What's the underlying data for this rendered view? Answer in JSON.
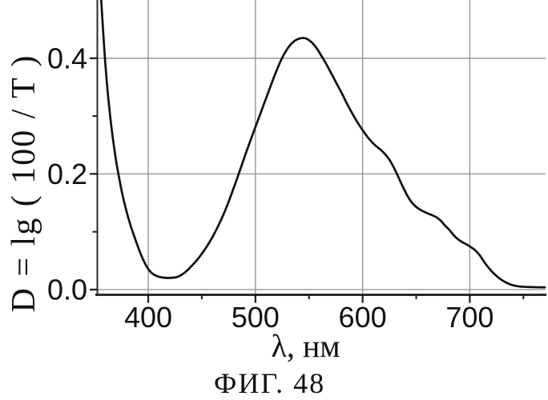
{
  "figure": {
    "caption": "ФИГ. 48",
    "background": "#ffffff"
  },
  "colors": {
    "curve": "#101010",
    "grid": "#8f8f8f",
    "axis": "#1a1a1a",
    "text": "#111111"
  },
  "chart_data": {
    "type": "line",
    "title": "",
    "xlabel": "λ, нм",
    "ylabel": "D = lg ( 100 / T )",
    "grid": true,
    "legend_visible": false,
    "x_axis": {
      "min": 352,
      "max": 770,
      "ticks": [
        400,
        500,
        600,
        700
      ],
      "tick_labels": [
        "400",
        "500",
        "600",
        "700"
      ],
      "minor_ticks": [
        450,
        550,
        650,
        750
      ]
    },
    "y_axis": {
      "min": 0.0,
      "max": 0.5,
      "ticks": [
        0.0,
        0.2,
        0.4
      ],
      "tick_labels": [
        "0.0",
        "0.2",
        "0.4"
      ],
      "minor_ticks": [
        0.1,
        0.3
      ]
    },
    "series": [
      {
        "name": "absorption spectrum D(lambda)",
        "points": [
          [
            355.3,
            0.525
          ],
          [
            356.5,
            0.49
          ],
          [
            358,
            0.445
          ],
          [
            360,
            0.39
          ],
          [
            362,
            0.345
          ],
          [
            364.5,
            0.3
          ],
          [
            367,
            0.262
          ],
          [
            370,
            0.223
          ],
          [
            373,
            0.192
          ],
          [
            376,
            0.164
          ],
          [
            379.5,
            0.137
          ],
          [
            383,
            0.114
          ],
          [
            387,
            0.092
          ],
          [
            391,
            0.071
          ],
          [
            395,
            0.053
          ],
          [
            399,
            0.0385
          ],
          [
            403,
            0.029
          ],
          [
            407,
            0.0243
          ],
          [
            411,
            0.0217
          ],
          [
            415,
            0.0206
          ],
          [
            419,
            0.0202
          ],
          [
            424,
            0.0207
          ],
          [
            428,
            0.0225
          ],
          [
            432,
            0.0265
          ],
          [
            436,
            0.0325
          ],
          [
            440,
            0.04
          ],
          [
            445,
            0.05
          ],
          [
            450,
            0.062
          ],
          [
            455,
            0.0755
          ],
          [
            460,
            0.091
          ],
          [
            465,
            0.109
          ],
          [
            470,
            0.129
          ],
          [
            475,
            0.152
          ],
          [
            480,
            0.177
          ],
          [
            485,
            0.203
          ],
          [
            490,
            0.23
          ],
          [
            495,
            0.256
          ],
          [
            500,
            0.281
          ],
          [
            505,
            0.306
          ],
          [
            510,
            0.331
          ],
          [
            515,
            0.356
          ],
          [
            520,
            0.38
          ],
          [
            525,
            0.401
          ],
          [
            529,
            0.414
          ],
          [
            533,
            0.424
          ],
          [
            537,
            0.4305
          ],
          [
            541,
            0.434
          ],
          [
            545,
            0.435
          ],
          [
            549,
            0.4325
          ],
          [
            553,
            0.4265
          ],
          [
            557,
            0.4175
          ],
          [
            561,
            0.406
          ],
          [
            565,
            0.3935
          ],
          [
            569,
            0.38
          ],
          [
            573,
            0.366
          ],
          [
            577,
            0.352
          ],
          [
            581,
            0.338
          ],
          [
            585,
            0.323
          ],
          [
            589,
            0.309
          ],
          [
            593,
            0.296
          ],
          [
            597,
            0.284
          ],
          [
            601,
            0.273
          ],
          [
            605,
            0.263
          ],
          [
            609,
            0.2545
          ],
          [
            613,
            0.2475
          ],
          [
            617,
            0.2415
          ],
          [
            621,
            0.234
          ],
          [
            625,
            0.2245
          ],
          [
            629,
            0.2115
          ],
          [
            633,
            0.196
          ],
          [
            637,
            0.18
          ],
          [
            641,
            0.165
          ],
          [
            645,
            0.153
          ],
          [
            649,
            0.1445
          ],
          [
            653,
            0.139
          ],
          [
            657,
            0.135
          ],
          [
            661,
            0.1315
          ],
          [
            665,
            0.1285
          ],
          [
            669,
            0.125
          ],
          [
            673,
            0.119
          ],
          [
            677,
            0.1105
          ],
          [
            681,
            0.103
          ],
          [
            685,
            0.094
          ],
          [
            689,
            0.087
          ],
          [
            693,
            0.082
          ],
          [
            697,
            0.078
          ],
          [
            701,
            0.0735
          ],
          [
            705,
            0.068
          ],
          [
            709,
            0.06
          ],
          [
            713,
            0.049
          ],
          [
            717,
            0.039
          ],
          [
            721,
            0.0305
          ],
          [
            725,
            0.0235
          ],
          [
            729,
            0.0175
          ],
          [
            733,
            0.013
          ],
          [
            737,
            0.0095
          ],
          [
            741,
            0.0072
          ],
          [
            745,
            0.0058
          ],
          [
            749,
            0.005
          ],
          [
            753,
            0.0046
          ],
          [
            757,
            0.0044
          ],
          [
            762,
            0.0042
          ],
          [
            767,
            0.004
          ],
          [
            770,
            0.004
          ]
        ]
      }
    ]
  }
}
